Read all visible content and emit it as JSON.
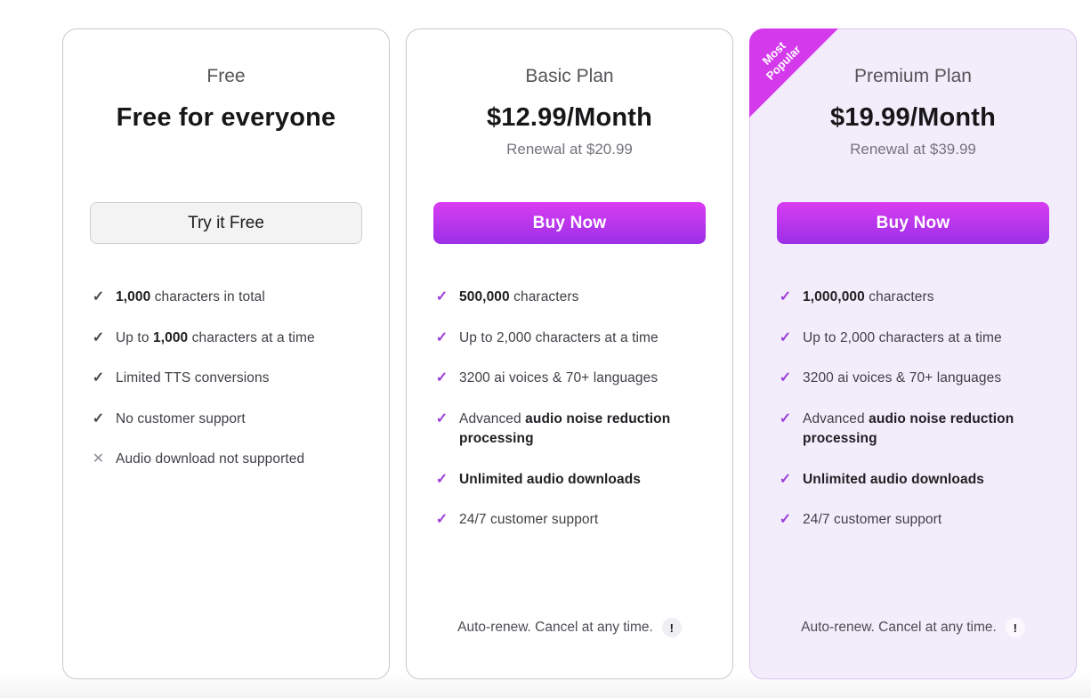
{
  "icons": {
    "check": "✓",
    "cross": "✕",
    "exclamation": "!"
  },
  "colors": {
    "accent_gradient_top": "#d93df2",
    "accent_gradient_bottom": "#9c2fe6",
    "check_purple": "#9d3ed6",
    "check_gray": "#48484e",
    "ribbon_magenta": "#d43aec",
    "premium_card_bg": "#f3edfb",
    "premium_card_border": "#d9c4ef",
    "card_border": "#c9c9cd"
  },
  "plans": [
    {
      "id": "free",
      "title": "Free",
      "price": "Free for everyone",
      "button_label": "Try it Free",
      "features": [
        {
          "icon": "check",
          "parts": [
            {
              "t": "1,000",
              "b": true
            },
            {
              "t": " characters in total",
              "b": false
            }
          ]
        },
        {
          "icon": "check",
          "parts": [
            {
              "t": "Up to ",
              "b": false
            },
            {
              "t": "1,000",
              "b": true
            },
            {
              "t": " characters at a time",
              "b": false
            }
          ]
        },
        {
          "icon": "check",
          "parts": [
            {
              "t": "Limited TTS conversions",
              "b": false
            }
          ]
        },
        {
          "icon": "check",
          "parts": [
            {
              "t": "No customer support",
              "b": false
            }
          ]
        },
        {
          "icon": "cross",
          "parts": [
            {
              "t": "Audio download not supported",
              "b": false
            }
          ]
        }
      ]
    },
    {
      "id": "basic",
      "title": "Basic Plan",
      "price": "$12.99/Month",
      "renewal": "Renewal at $20.99",
      "button_label": "Buy Now",
      "note": "Auto-renew. Cancel at any time.",
      "features": [
        {
          "icon": "check",
          "parts": [
            {
              "t": "500,000",
              "b": true
            },
            {
              "t": " characters",
              "b": false
            }
          ]
        },
        {
          "icon": "check",
          "parts": [
            {
              "t": "Up to 2,000 characters at a time",
              "b": false
            }
          ]
        },
        {
          "icon": "check",
          "parts": [
            {
              "t": "3200 ai voices & 70+ languages",
              "b": false
            }
          ]
        },
        {
          "icon": "check",
          "parts": [
            {
              "t": "Advanced ",
              "b": false
            },
            {
              "t": "audio noise reduction processing",
              "b": true
            }
          ]
        },
        {
          "icon": "check",
          "parts": [
            {
              "t": "Unlimited audio downloads",
              "b": true
            }
          ]
        },
        {
          "icon": "check",
          "parts": [
            {
              "t": "24/7 customer support",
              "b": false
            }
          ]
        }
      ]
    },
    {
      "id": "premium",
      "badge": "Most Popular",
      "title": "Premium Plan",
      "price": "$19.99/Month",
      "renewal": "Renewal at $39.99",
      "button_label": "Buy Now",
      "note": "Auto-renew. Cancel at any time.",
      "features": [
        {
          "icon": "check",
          "parts": [
            {
              "t": "1,000,000",
              "b": true
            },
            {
              "t": " characters",
              "b": false
            }
          ]
        },
        {
          "icon": "check",
          "parts": [
            {
              "t": "Up to 2,000 characters at a time",
              "b": false
            }
          ]
        },
        {
          "icon": "check",
          "parts": [
            {
              "t": "3200 ai voices & 70+ languages",
              "b": false
            }
          ]
        },
        {
          "icon": "check",
          "parts": [
            {
              "t": "Advanced ",
              "b": false
            },
            {
              "t": "audio noise reduction processing",
              "b": true
            }
          ]
        },
        {
          "icon": "check",
          "parts": [
            {
              "t": "Unlimited audio downloads",
              "b": true
            }
          ]
        },
        {
          "icon": "check",
          "parts": [
            {
              "t": "24/7 customer support",
              "b": false
            }
          ]
        }
      ]
    }
  ]
}
